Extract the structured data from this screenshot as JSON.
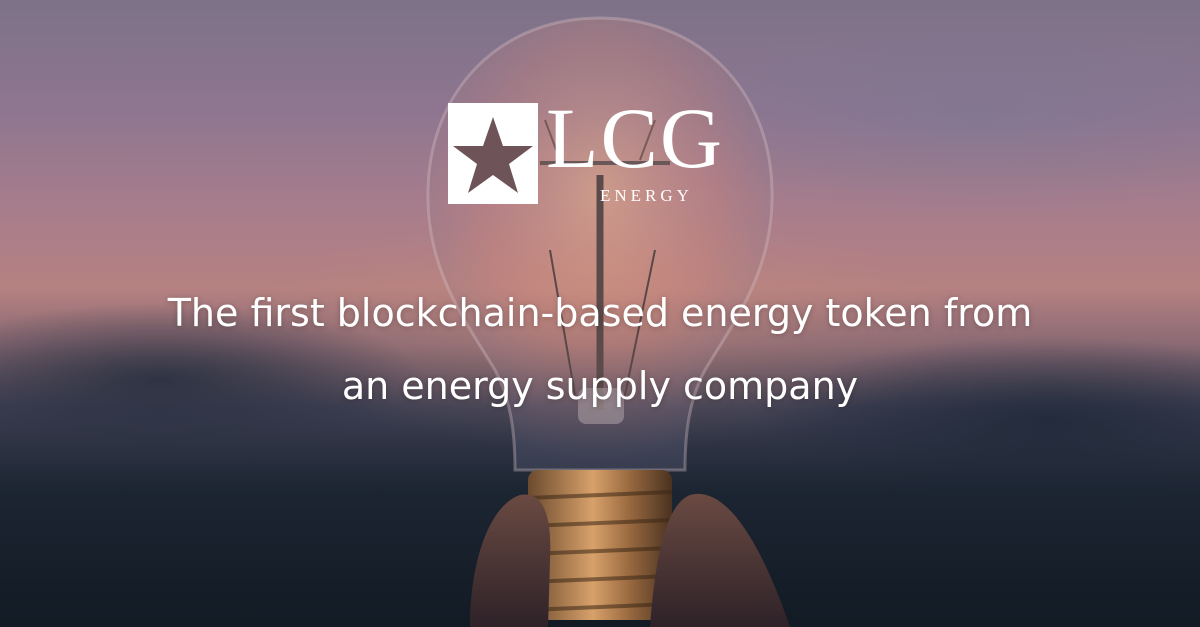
{
  "logo": {
    "wordmark": "LCG",
    "subtitle": "ENERGY"
  },
  "headline": {
    "text": "The first blockchain-based energy token from an energy supply company"
  },
  "colors": {
    "text": "#ffffff",
    "logo_box": "#ffffff",
    "logo_star": "#6e5458"
  },
  "icons": {
    "logo_mark": "star-icon"
  }
}
